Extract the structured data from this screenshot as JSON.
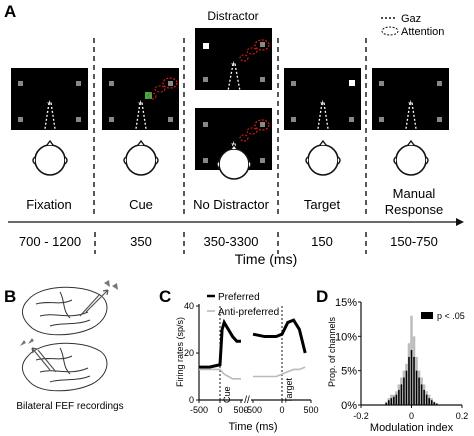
{
  "panels": {
    "a": "A",
    "b": "B",
    "c": "C",
    "d": "D"
  },
  "legend_a": {
    "gaze": "Gaz",
    "attention": "Attention"
  },
  "distractor_label": "Distractor",
  "epochs": [
    {
      "name": "Fixation",
      "duration": "700 - 1200"
    },
    {
      "name": "Cue",
      "duration": "350"
    },
    {
      "name": "No Distractor",
      "duration": "350-3300"
    },
    {
      "name": "Target",
      "duration": "150"
    },
    {
      "name": "Manual",
      "name2": "Response",
      "duration": "150-750"
    }
  ],
  "time_axis_label": "Time (ms)",
  "panel_b_caption": "Bilateral FEF recordings",
  "colors": {
    "cue_square": "#3cb043",
    "attention_ring": "#e02020",
    "target_square": "#ffffff",
    "screen": "#000000"
  },
  "chart_data": [
    {
      "type": "line",
      "ylabel": "Firing rates (sp/s)",
      "xlabel": "Time (ms)",
      "ylim": [
        0,
        40
      ],
      "yticks": [
        "0",
        "20",
        "40"
      ],
      "xticks": [
        "-500",
        "0",
        "500",
        "-500",
        "0",
        "500"
      ],
      "annotations": [
        "Cue",
        "Target"
      ],
      "series": [
        {
          "name": "Preferred",
          "color": "#000000",
          "x_cue": [
            -500,
            -250,
            0,
            50,
            100,
            200,
            300,
            400,
            500
          ],
          "y_cue": [
            14,
            14,
            15,
            30,
            33,
            30,
            27,
            25,
            25
          ],
          "x_target": [
            -500,
            -300,
            -100,
            0,
            100,
            200,
            300,
            400
          ],
          "y_target": [
            28,
            27,
            27,
            28,
            33,
            34,
            30,
            20
          ]
        },
        {
          "name": "Anti-preferred",
          "color": "#bbbbbb",
          "x_cue": [
            -500,
            -250,
            0,
            100,
            200,
            300,
            400,
            500
          ],
          "y_cue": [
            13,
            13,
            13,
            11,
            10,
            9,
            9,
            9
          ],
          "x_target": [
            -500,
            -300,
            -100,
            0,
            100,
            200,
            300,
            400
          ],
          "y_target": [
            10,
            10,
            10,
            11,
            12,
            13,
            13,
            14
          ]
        }
      ]
    },
    {
      "type": "bar",
      "ylabel": "Prop. of channels",
      "xlabel": "Modulation index",
      "xlim": [
        -0.2,
        0.2
      ],
      "ylim": [
        0,
        15
      ],
      "yticks": [
        "0%",
        "5%",
        "10%",
        "15%"
      ],
      "xticks": [
        "-0.2",
        "0",
        "0.2"
      ],
      "legend": "p < .05",
      "bin_centers": [
        -0.1,
        -0.09,
        -0.08,
        -0.07,
        -0.06,
        -0.05,
        -0.04,
        -0.03,
        -0.02,
        -0.01,
        0,
        0.01,
        0.02,
        0.03,
        0.04,
        0.05,
        0.06,
        0.07,
        0.08,
        0.09,
        0.1
      ],
      "all_channels": [
        0.5,
        1,
        1.5,
        1.5,
        2,
        3,
        4,
        5,
        6,
        9,
        13,
        10,
        7,
        5,
        4,
        3,
        2,
        1.5,
        1,
        0.5,
        0.3
      ],
      "significant": [
        0.3,
        0.7,
        1,
        1.2,
        1.5,
        2.2,
        3,
        4,
        5,
        7,
        8,
        7,
        5,
        4,
        3,
        2.2,
        1.5,
        1,
        0.7,
        0.4,
        0.2
      ]
    }
  ]
}
